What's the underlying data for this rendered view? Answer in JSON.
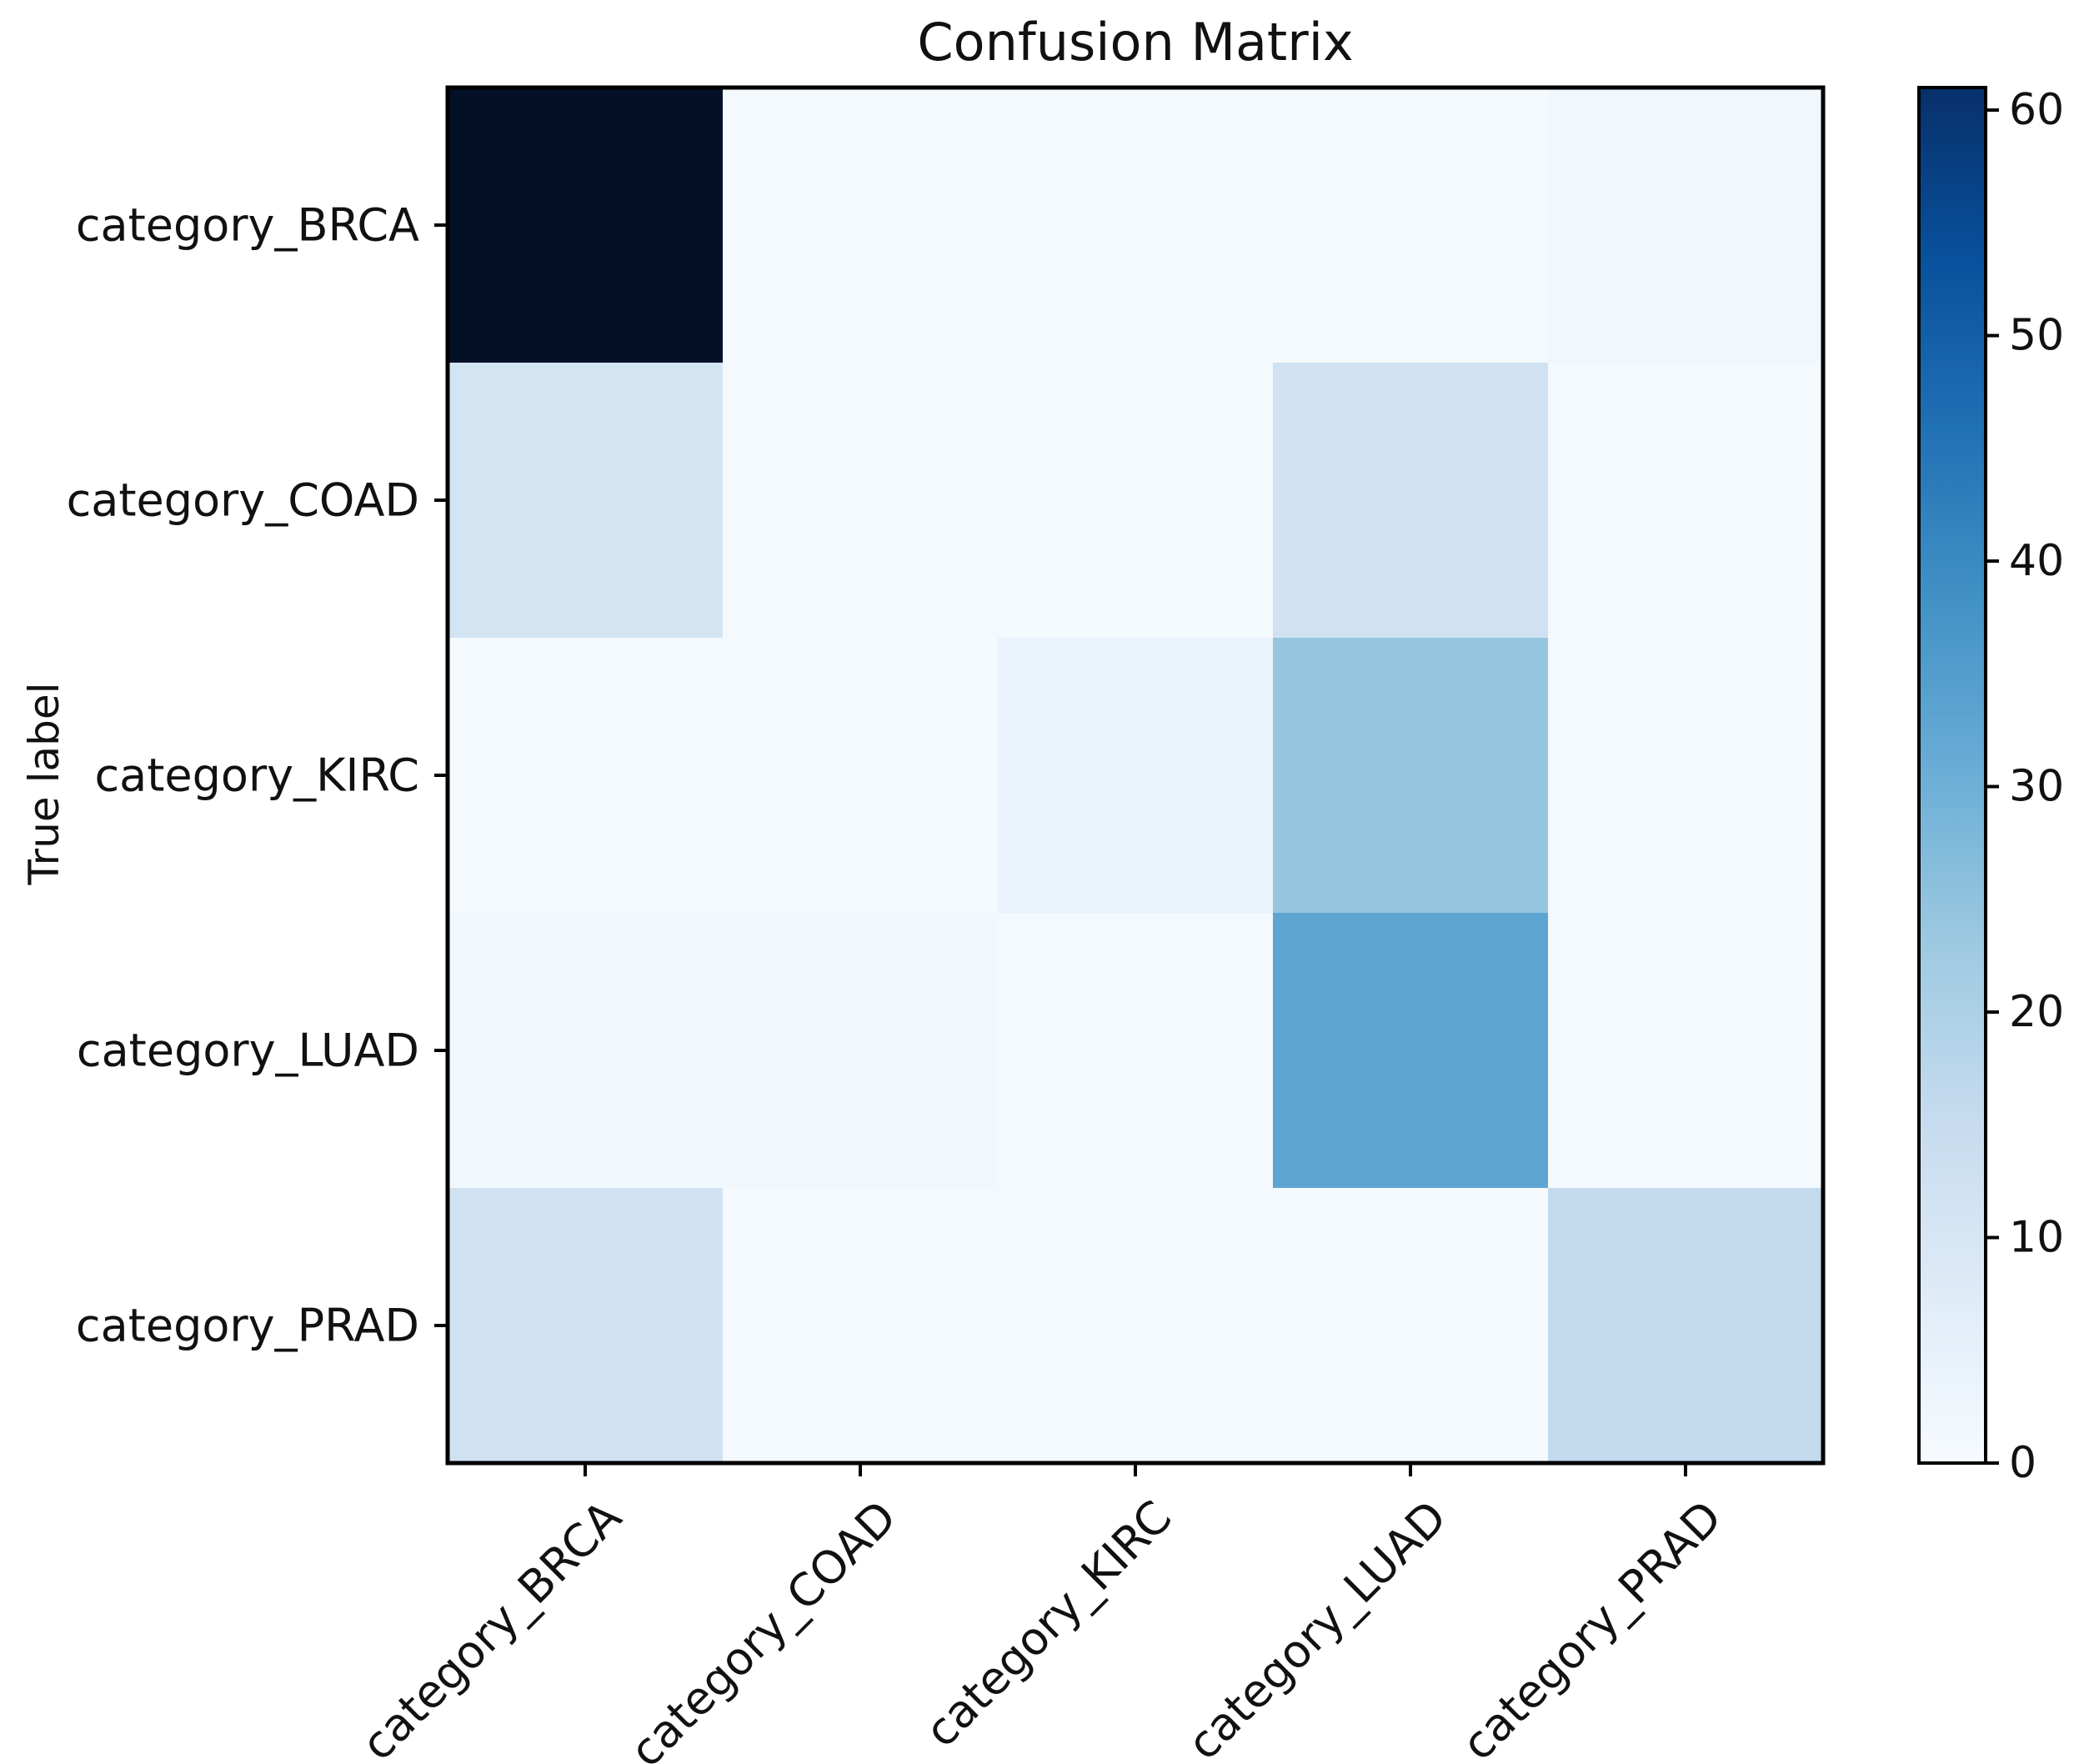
{
  "chart_data": {
    "type": "heatmap",
    "title": "Confusion Matrix",
    "ylabel": "True label",
    "xlabel": "",
    "row_labels": [
      "category_BRCA",
      "category_COAD",
      "category_KIRC",
      "category_LUAD",
      "category_PRAD"
    ],
    "col_labels": [
      "category_BRCA",
      "category_COAD",
      "category_KIRC",
      "category_LUAD",
      "category_PRAD"
    ],
    "values": [
      [
        61,
        1,
        1,
        1,
        2
      ],
      [
        11,
        1,
        1,
        12,
        1
      ],
      [
        1,
        1,
        4,
        24,
        1
      ],
      [
        2,
        2,
        1,
        33,
        1
      ],
      [
        12,
        1,
        1,
        1,
        16
      ]
    ],
    "colorbar": {
      "min": 0,
      "max": 61,
      "ticks": [
        0,
        10,
        20,
        30,
        40,
        50,
        60
      ],
      "colormap": "Blues"
    }
  }
}
